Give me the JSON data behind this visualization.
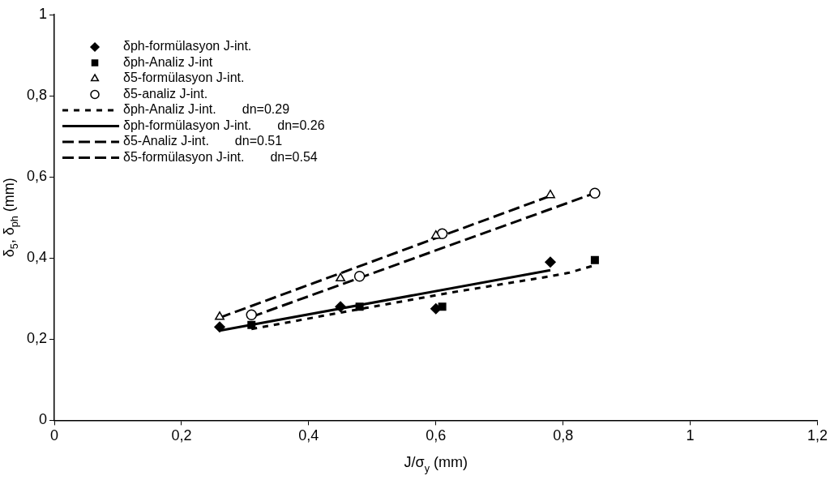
{
  "chart_data": {
    "type": "scatter",
    "xlabel": "J/σ$_{y}$ (mm)",
    "ylabel": "δ$_{5}$, δ$_{ph}$ (mm)",
    "xlim": [
      0,
      1.2
    ],
    "xticks": [
      0,
      {
        "value": 0.2,
        "label": "0,2"
      },
      {
        "value": 0.4,
        "label": "0,4"
      },
      {
        "value": 0.6,
        "label": "0,6"
      },
      {
        "value": 0.8,
        "label": "0,8"
      },
      1,
      {
        "value": 1.2,
        "label": "1,2"
      }
    ],
    "ylim": [
      0,
      1
    ],
    "yticks": [
      0,
      {
        "value": 0.2,
        "label": "0,2"
      },
      {
        "value": 0.4,
        "label": "0,4"
      },
      {
        "value": 0.6,
        "label": "0,6"
      },
      {
        "value": 0.8,
        "label": "0,8"
      },
      1
    ],
    "grid": false,
    "legend": "top left",
    "series": [
      {
        "name": "δph-formülasyon J-int.",
        "marker": "diamond",
        "color": "#000000",
        "x": [
          0.26,
          0.45,
          0.6,
          0.78
        ],
        "values": [
          0.23,
          0.28,
          0.275,
          0.39
        ]
      },
      {
        "name": "δph-Analiz J-int",
        "marker": "square",
        "color": "#000000",
        "x": [
          0.31,
          0.48,
          0.61,
          0.85
        ],
        "values": [
          0.235,
          0.28,
          0.28,
          0.395
        ]
      },
      {
        "name": "δ5-formülasyon J-int.",
        "marker": "triangle",
        "color": "#000000",
        "x": [
          0.26,
          0.45,
          0.6,
          0.78
        ],
        "values": [
          0.255,
          0.35,
          0.455,
          0.555
        ]
      },
      {
        "name": "δ5-analiz J-int.",
        "marker": "circle",
        "color": "#000000",
        "x": [
          0.31,
          0.48,
          0.61,
          0.85
        ],
        "values": [
          0.26,
          0.355,
          0.46,
          0.56
        ]
      },
      {
        "name": "δph-Analiz J-int.            dn=0.29",
        "type": "line",
        "line_style": "dotted",
        "marker": "none",
        "color": "#000000",
        "x": [
          0.31,
          0.49,
          0.62,
          0.78,
          0.81,
          0.845
        ],
        "values": [
          0.225,
          0.277,
          0.314,
          0.355,
          0.364,
          0.38
        ]
      },
      {
        "name": "δph-formülasyon J-int.   dn=0.26",
        "type": "line",
        "line_style": "solid",
        "marker": "none",
        "color": "#000000",
        "x": [
          0.26,
          0.78
        ],
        "values": [
          0.221,
          0.37
        ]
      },
      {
        "name": "δ5-Analiz J-int.              dn=0.51",
        "type": "line",
        "line_style": "dashed",
        "marker": "none",
        "color": "#000000",
        "x": [
          0.31,
          0.85
        ],
        "values": [
          0.255,
          0.56
        ]
      },
      {
        "name": "δ5-formülasyon J-int.     dn=0.54",
        "type": "line",
        "line_style": "dashed",
        "marker": "none",
        "color": "#000000",
        "x": [
          0.26,
          0.78
        ],
        "values": [
          0.253,
          0.553
        ]
      }
    ]
  }
}
